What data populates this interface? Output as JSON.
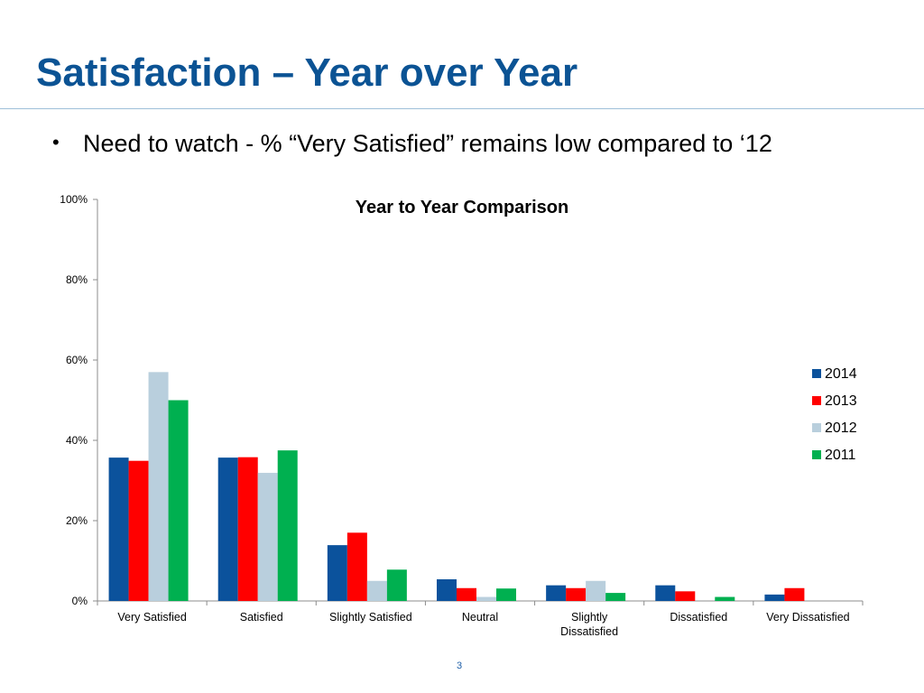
{
  "slide": {
    "title": "Satisfaction – Year over Year",
    "bullet_symbol": "•",
    "bullet_text": "Need to watch - % “Very Satisfied” remains low compared to ‘12",
    "page_number": "3"
  },
  "colors": {
    "title": "#0b5394",
    "rule": "#9fbfd9",
    "page_number": "#1f5fa8"
  },
  "chart_data": {
    "type": "bar",
    "title": "Year to Year Comparison",
    "xlabel": "",
    "ylabel": "",
    "ylim": [
      0,
      100
    ],
    "y_ticks": [
      0,
      20,
      40,
      60,
      80,
      100
    ],
    "y_tick_suffix": "%",
    "categories": [
      "Very Satisfied",
      "Satisfied",
      "Slightly Satisfied",
      "Neutral",
      [
        "Slightly",
        "Dissatisfied"
      ],
      "Dissatisfied",
      "Very Dissatisfied"
    ],
    "series": [
      {
        "name": "2014",
        "color": "#0b529c",
        "values": [
          35.7,
          35.7,
          13.9,
          5.4,
          3.9,
          3.9,
          1.6
        ]
      },
      {
        "name": "2013",
        "color": "#ff0000",
        "values": [
          34.9,
          35.8,
          17.0,
          3.2,
          3.2,
          2.4,
          3.2
        ]
      },
      {
        "name": "2012",
        "color": "#b9cfdd",
        "values": [
          57.0,
          31.9,
          5.0,
          1.0,
          5.0,
          0,
          0
        ]
      },
      {
        "name": "2011",
        "color": "#00b050",
        "values": [
          50.0,
          37.5,
          7.8,
          3.1,
          2.0,
          1.0,
          0
        ]
      }
    ],
    "grid": false,
    "legend_position": "right"
  }
}
